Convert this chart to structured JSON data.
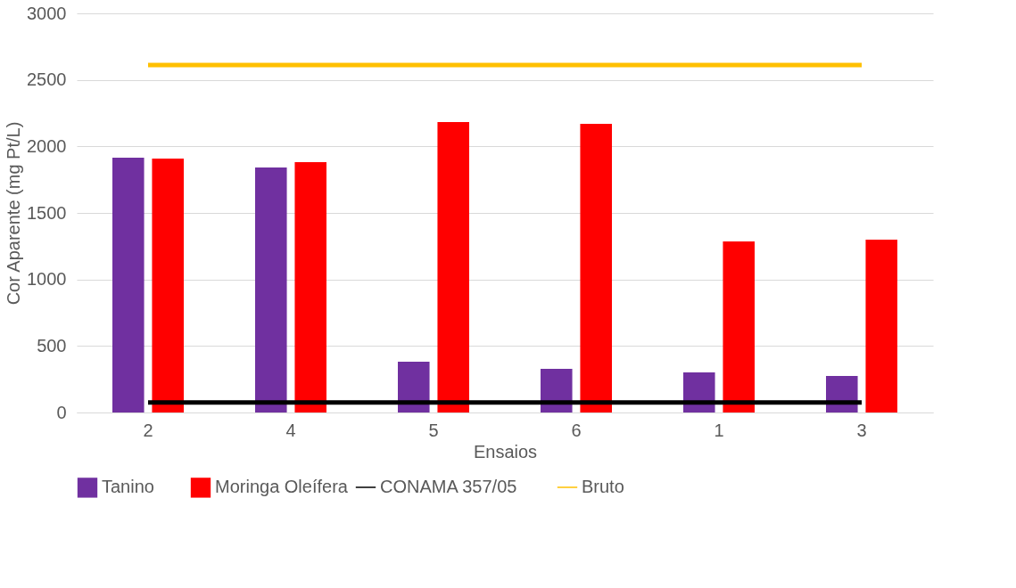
{
  "chart_data": {
    "type": "bar",
    "xlabel": "Ensaios",
    "ylabel": "Cor Aparente (mg Pt/L)",
    "categories": [
      "2",
      "4",
      "5",
      "6",
      "1",
      "3"
    ],
    "series": [
      {
        "name": "Tanino",
        "color": "#7030a0",
        "values": [
          1915,
          1842,
          382,
          328,
          301,
          275
        ]
      },
      {
        "name": "Moringa Oleífera",
        "color": "#ff0000",
        "values": [
          1909,
          1882,
          2183,
          2170,
          1286,
          1299
        ]
      },
      {
        "name": "CONAMA 357/05",
        "type": "line",
        "color": "#000000",
        "values": [
          75,
          75,
          75,
          75,
          75,
          75
        ]
      },
      {
        "name": "Bruto",
        "type": "line",
        "color": "#ffc000",
        "values": [
          2612,
          2612,
          2612,
          2612,
          2612,
          2612
        ]
      }
    ],
    "ylim": [
      0,
      3000
    ],
    "yticks": [
      0,
      500,
      1000,
      1500,
      2000,
      2500,
      3000
    ],
    "grid": "y",
    "legend": "bottom"
  }
}
